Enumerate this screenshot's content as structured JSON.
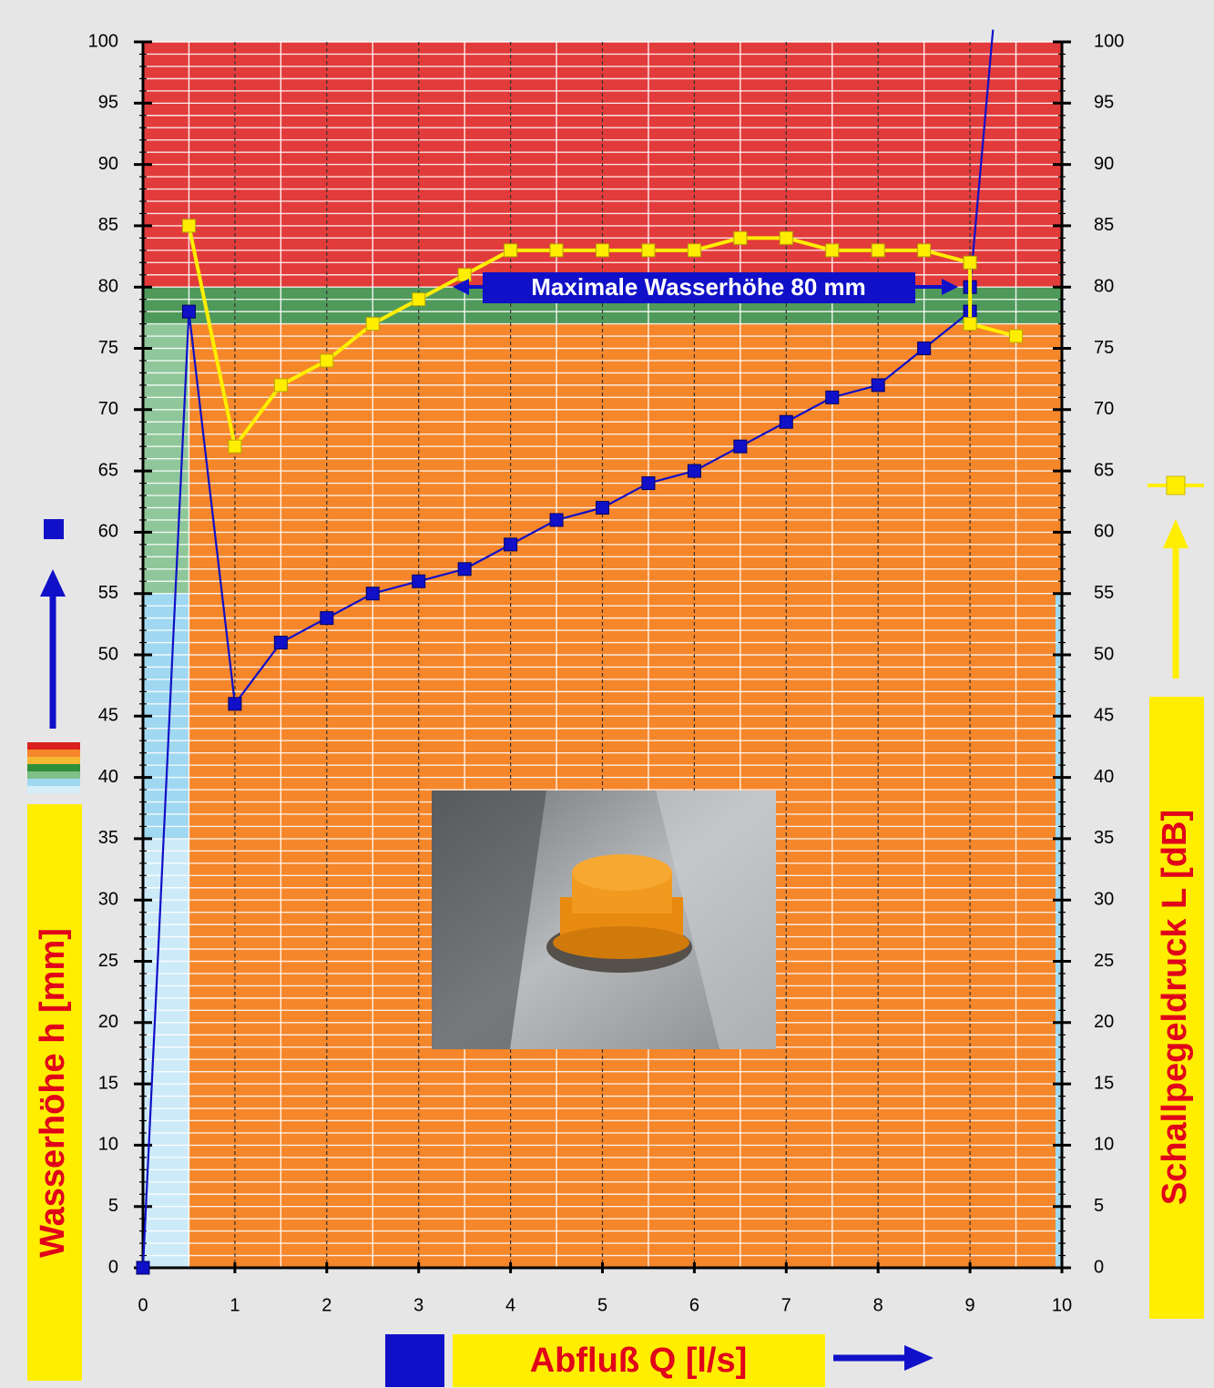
{
  "chart_data": {
    "type": "line",
    "x_label": "Abfluß Q [l/s]",
    "y_label": "Wasserhöhe h [mm]",
    "y2_label": "Schallpegeldruck L [dB]",
    "annotation": {
      "text": "Maximale Wasserhöhe 80 mm",
      "y": 80
    },
    "xlim": [
      0,
      10
    ],
    "xticks": [
      0,
      1,
      2,
      3,
      4,
      5,
      6,
      7,
      8,
      9,
      10
    ],
    "ylim": [
      0,
      100
    ],
    "yticks": [
      0,
      5,
      10,
      15,
      20,
      25,
      30,
      35,
      40,
      45,
      50,
      55,
      60,
      65,
      70,
      75,
      80,
      85,
      90,
      95,
      100
    ],
    "y2lim": [
      0,
      100
    ],
    "y2ticks": [
      0,
      5,
      10,
      15,
      20,
      25,
      30,
      35,
      40,
      45,
      50,
      55,
      60,
      65,
      70,
      75,
      80,
      85,
      90,
      95,
      100
    ],
    "grid": true,
    "series": [
      {
        "color": "#1010c8",
        "axis": "y",
        "x": [
          0,
          0.5,
          1,
          1.5,
          2,
          2.5,
          3,
          3.5,
          4,
          4.5,
          5,
          5.5,
          6,
          6.5,
          7,
          7.5,
          8,
          8.5,
          9,
          9,
          9.25
        ],
        "values": [
          0,
          78,
          46,
          51,
          53,
          55,
          56,
          57,
          59,
          61,
          62,
          64,
          65,
          67,
          69,
          71,
          72,
          75,
          78,
          80,
          101
        ]
      },
      {
        "color": "#ffee00",
        "axis": "y2",
        "x": [
          0.5,
          1,
          1.5,
          2,
          2.5,
          3,
          3.5,
          4,
          4.5,
          5,
          5.5,
          6,
          6.5,
          7,
          7.5,
          8,
          8.5,
          9,
          9,
          9.5
        ],
        "values": [
          85,
          67,
          72,
          74,
          77,
          79,
          81,
          83,
          83,
          83,
          83,
          83,
          84,
          84,
          83,
          83,
          83,
          82,
          77,
          76
        ]
      }
    ]
  }
}
